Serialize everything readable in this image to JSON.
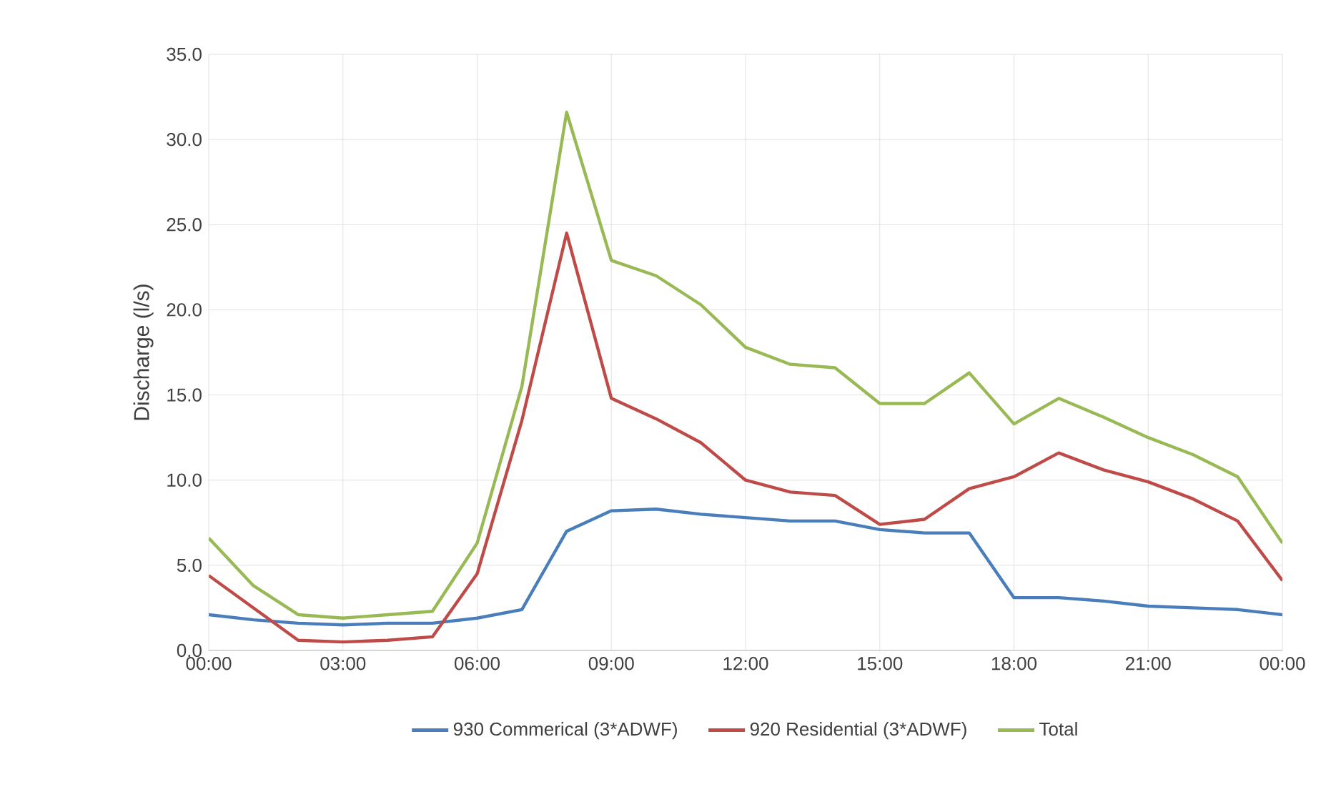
{
  "chart_data": {
    "type": "line",
    "ylabel": "Discharge (l/s)",
    "x": [
      0,
      1,
      2,
      3,
      4,
      5,
      6,
      7,
      8,
      9,
      10,
      11,
      12,
      13,
      14,
      15,
      16,
      17,
      18,
      19,
      20,
      21,
      22,
      23,
      24
    ],
    "series": [
      {
        "name": "930 Commerical (3*ADWF)",
        "color": "#4a7ebb",
        "values": [
          2.1,
          1.8,
          1.6,
          1.5,
          1.6,
          1.6,
          1.9,
          2.4,
          7.0,
          8.2,
          8.3,
          8.0,
          7.8,
          7.6,
          7.6,
          7.1,
          6.9,
          6.9,
          3.1,
          3.1,
          2.9,
          2.6,
          2.5,
          2.4,
          2.1
        ]
      },
      {
        "name": "920 Residential (3*ADWF)",
        "color": "#be4b48",
        "values": [
          4.4,
          2.5,
          0.6,
          0.5,
          0.6,
          0.8,
          4.5,
          13.5,
          24.5,
          14.8,
          13.6,
          12.2,
          10.0,
          9.3,
          9.1,
          7.4,
          7.7,
          9.5,
          10.2,
          11.6,
          10.6,
          9.9,
          8.9,
          7.6,
          4.1
        ]
      },
      {
        "name": "Total",
        "color": "#98b954",
        "values": [
          6.6,
          3.8,
          2.1,
          1.9,
          2.1,
          2.3,
          6.3,
          15.5,
          31.6,
          22.9,
          22.0,
          20.3,
          17.8,
          16.8,
          16.6,
          14.5,
          14.5,
          16.3,
          13.3,
          14.8,
          13.7,
          12.5,
          11.5,
          10.2,
          6.3
        ]
      }
    ],
    "xlim": [
      0,
      24
    ],
    "xticks": [
      {
        "value": 0,
        "label": "00:00"
      },
      {
        "value": 3,
        "label": "03:00"
      },
      {
        "value": 6,
        "label": "06:00"
      },
      {
        "value": 9,
        "label": "09:00"
      },
      {
        "value": 12,
        "label": "12:00"
      },
      {
        "value": 15,
        "label": "15:00"
      },
      {
        "value": 18,
        "label": "18:00"
      },
      {
        "value": 21,
        "label": "21:00"
      },
      {
        "value": 24,
        "label": "00:00"
      }
    ],
    "ylim": [
      0,
      35
    ],
    "yticks": [
      {
        "value": 0,
        "label": "0.0"
      },
      {
        "value": 5,
        "label": "5.0"
      },
      {
        "value": 10,
        "label": "10.0"
      },
      {
        "value": 15,
        "label": "15.0"
      },
      {
        "value": 20,
        "label": "20.0"
      },
      {
        "value": 25,
        "label": "25.0"
      },
      {
        "value": 30,
        "label": "30.0"
      },
      {
        "value": 35,
        "label": "35.0"
      }
    ],
    "grid": true,
    "legend": "bottom",
    "marker": "none",
    "line_style": "solid"
  }
}
